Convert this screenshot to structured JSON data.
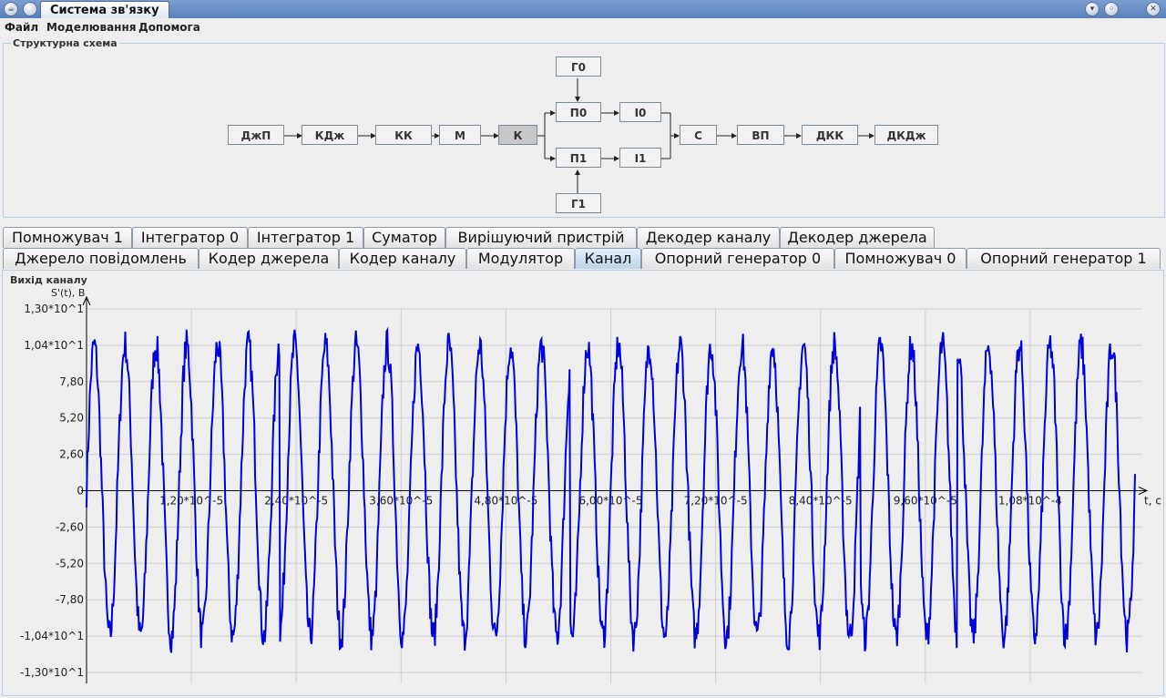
{
  "window": {
    "title": "Система зв'язку",
    "controls": [
      "minimize-icon",
      "maximize-icon"
    ]
  },
  "menu": {
    "items": [
      "Файл",
      "Моделювання",
      "Допомога"
    ]
  },
  "scheme": {
    "title": "Структурна схема",
    "blocks": {
      "dzhp": "ДжП",
      "kdzh": "КДж",
      "kk": "КК",
      "m": "М",
      "k": "К",
      "g0": "Г0",
      "p0": "П0",
      "i0": "І0",
      "p1": "П1",
      "i1": "І1",
      "g1": "Г1",
      "s": "С",
      "vp": "ВП",
      "dkk": "ДКК",
      "dkdzh": "ДКДж"
    },
    "selected": "k"
  },
  "tabs": {
    "row_top": [
      "Помножувач 1",
      "Інтегратор 0",
      "Інтегратор 1",
      "Суматор",
      "Вирішуючий пристрій",
      "Декодер каналу",
      "Декодер джерела"
    ],
    "row_bottom": [
      "Джерело повідомлень",
      "Кодер джерела",
      "Кодер каналу",
      "Модулятор",
      "Канал",
      "Опорний генератор 0",
      "Помножувач 0",
      "Опорний генератор 1"
    ],
    "active": "Канал"
  },
  "panel": {
    "title": "Вихід каналу"
  },
  "chart_data": {
    "type": "line",
    "title": "",
    "xlabel": "t, c",
    "ylabel": "S'(t), В",
    "grid": true,
    "xlim": [
      0,
      0.00012
    ],
    "ylim": [
      -13,
      13
    ],
    "y_ticks": [
      {
        "v": 13,
        "label": "1,30*10^1"
      },
      {
        "v": 10.4,
        "label": "1,04*10^1"
      },
      {
        "v": 7.8,
        "label": "7,80"
      },
      {
        "v": 5.2,
        "label": "5,20"
      },
      {
        "v": 2.6,
        "label": "2,60"
      },
      {
        "v": 0,
        "label": "0"
      },
      {
        "v": -2.6,
        "label": "-2,60"
      },
      {
        "v": -5.2,
        "label": "-5,20"
      },
      {
        "v": -7.8,
        "label": "-7,80"
      },
      {
        "v": -10.4,
        "label": "-1,04*10^1"
      },
      {
        "v": -13,
        "label": "-1,30*10^1"
      }
    ],
    "x_ticks": [
      {
        "v": 1.2e-05,
        "label": "1,20*10^-5"
      },
      {
        "v": 2.4e-05,
        "label": "2,40*10^-5"
      },
      {
        "v": 3.6e-05,
        "label": "3,60*10^-5"
      },
      {
        "v": 4.8e-05,
        "label": "4,80*10^-5"
      },
      {
        "v": 6e-05,
        "label": "6,00*10^-5"
      },
      {
        "v": 7.2e-05,
        "label": "7,20*10^-5"
      },
      {
        "v": 8.4e-05,
        "label": "8,40*10^-5"
      },
      {
        "v": 9.6e-05,
        "label": "9,60*10^-5"
      },
      {
        "v": 0.000108,
        "label": "1,08*10^-4"
      }
    ],
    "series": [
      {
        "color": "#0000dd",
        "amplitude": 10.4,
        "noise": 1.2,
        "periods": 34,
        "samples": 1300
      }
    ]
  }
}
